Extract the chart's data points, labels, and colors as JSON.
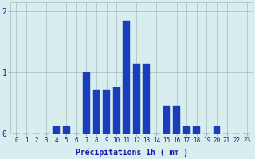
{
  "hours": [
    0,
    1,
    2,
    3,
    4,
    5,
    6,
    7,
    8,
    9,
    10,
    11,
    12,
    13,
    14,
    15,
    16,
    17,
    18,
    19,
    20,
    21,
    22,
    23
  ],
  "values": [
    0,
    0,
    0,
    0,
    0.12,
    0.12,
    0.0,
    1.0,
    0.72,
    0.72,
    0.75,
    1.85,
    1.15,
    1.15,
    0.0,
    0.45,
    0.45,
    0.12,
    0.12,
    0.0,
    0.12,
    0.0,
    0.0,
    0.0
  ],
  "bar_color": "#1a3ebb",
  "bar_edge_color": "#1a3ebb",
  "background_color": "#d8eeee",
  "grid_color": "#aababa",
  "text_color": "#1a1aaa",
  "xlabel": "Précipitations 1h ( mm )",
  "ylim": [
    0,
    2.15
  ],
  "yticks": [
    0,
    1,
    2
  ],
  "xlabel_fontsize": 7,
  "tick_fontsize": 5.5
}
